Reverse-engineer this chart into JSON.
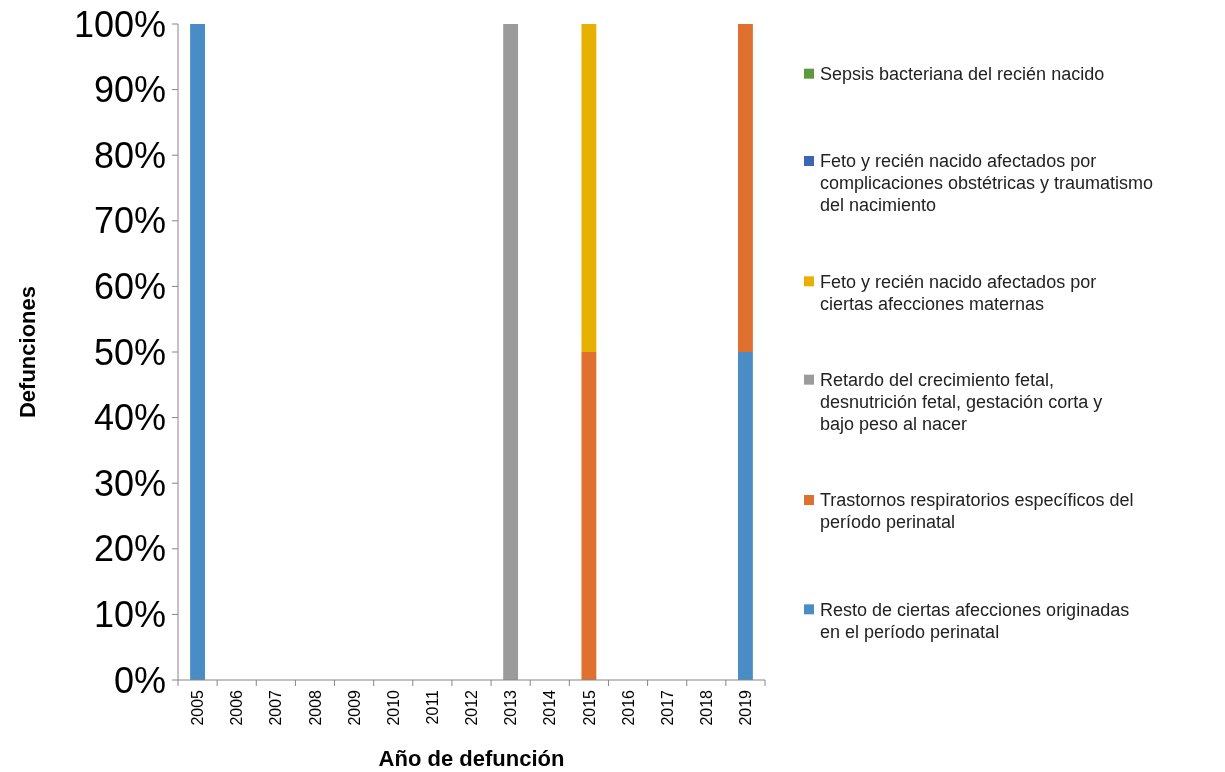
{
  "chart_data": {
    "type": "bar",
    "stacked": true,
    "xlabel": "Año de defunción",
    "ylabel": "Defunciones",
    "categories": [
      "2005",
      "2006",
      "2007",
      "2008",
      "2009",
      "2010",
      "2011",
      "2012",
      "2013",
      "2014",
      "2015",
      "2016",
      "2017",
      "2018",
      "2019"
    ],
    "ylim": [
      0,
      100
    ],
    "yticks": [
      {
        "value": 0,
        "label": "0%"
      },
      {
        "value": 10,
        "label": "10%"
      },
      {
        "value": 20,
        "label": "20%"
      },
      {
        "value": 30,
        "label": "30%"
      },
      {
        "value": 40,
        "label": "40%"
      },
      {
        "value": 50,
        "label": "50%"
      },
      {
        "value": 60,
        "label": "60%"
      },
      {
        "value": 70,
        "label": "70%"
      },
      {
        "value": 80,
        "label": "80%"
      },
      {
        "value": 90,
        "label": "90%"
      },
      {
        "value": 100,
        "label": "100%"
      }
    ],
    "legend": "right",
    "grid": false,
    "series": [
      {
        "name": "Resto de ciertas afecciones originadas en el período perinatal",
        "color": "#4a8cc6",
        "values": [
          100,
          0,
          0,
          0,
          0,
          0,
          0,
          0,
          0,
          0,
          0,
          0,
          0,
          0,
          50
        ]
      },
      {
        "name": "Trastornos respiratorios específicos del período perinatal",
        "color": "#e07030",
        "values": [
          0,
          0,
          0,
          0,
          0,
          0,
          0,
          0,
          0,
          0,
          50,
          0,
          0,
          0,
          50
        ]
      },
      {
        "name": "Retardo del crecimiento fetal, desnutrición fetal, gestación corta y bajo peso al nacer",
        "color": "#9b9b9b",
        "values": [
          0,
          0,
          0,
          0,
          0,
          0,
          0,
          0,
          100,
          0,
          0,
          0,
          0,
          0,
          0
        ]
      },
      {
        "name": "Feto y recién nacido afectados por ciertas afecciones maternas",
        "color": "#e8b000",
        "values": [
          0,
          0,
          0,
          0,
          0,
          0,
          0,
          0,
          0,
          0,
          50,
          0,
          0,
          0,
          0
        ]
      },
      {
        "name": "Feto y recién nacido afectados por complicaciones obstétricas y traumatismo del nacimiento",
        "color": "#3c66b4",
        "values": [
          0,
          0,
          0,
          0,
          0,
          0,
          0,
          0,
          0,
          0,
          0,
          0,
          0,
          0,
          0
        ]
      },
      {
        "name": "Sepsis bacteriana del recién nacido",
        "color": "#5c9a3c",
        "values": [
          0,
          0,
          0,
          0,
          0,
          0,
          0,
          0,
          0,
          0,
          0,
          0,
          0,
          0,
          0
        ]
      }
    ]
  }
}
